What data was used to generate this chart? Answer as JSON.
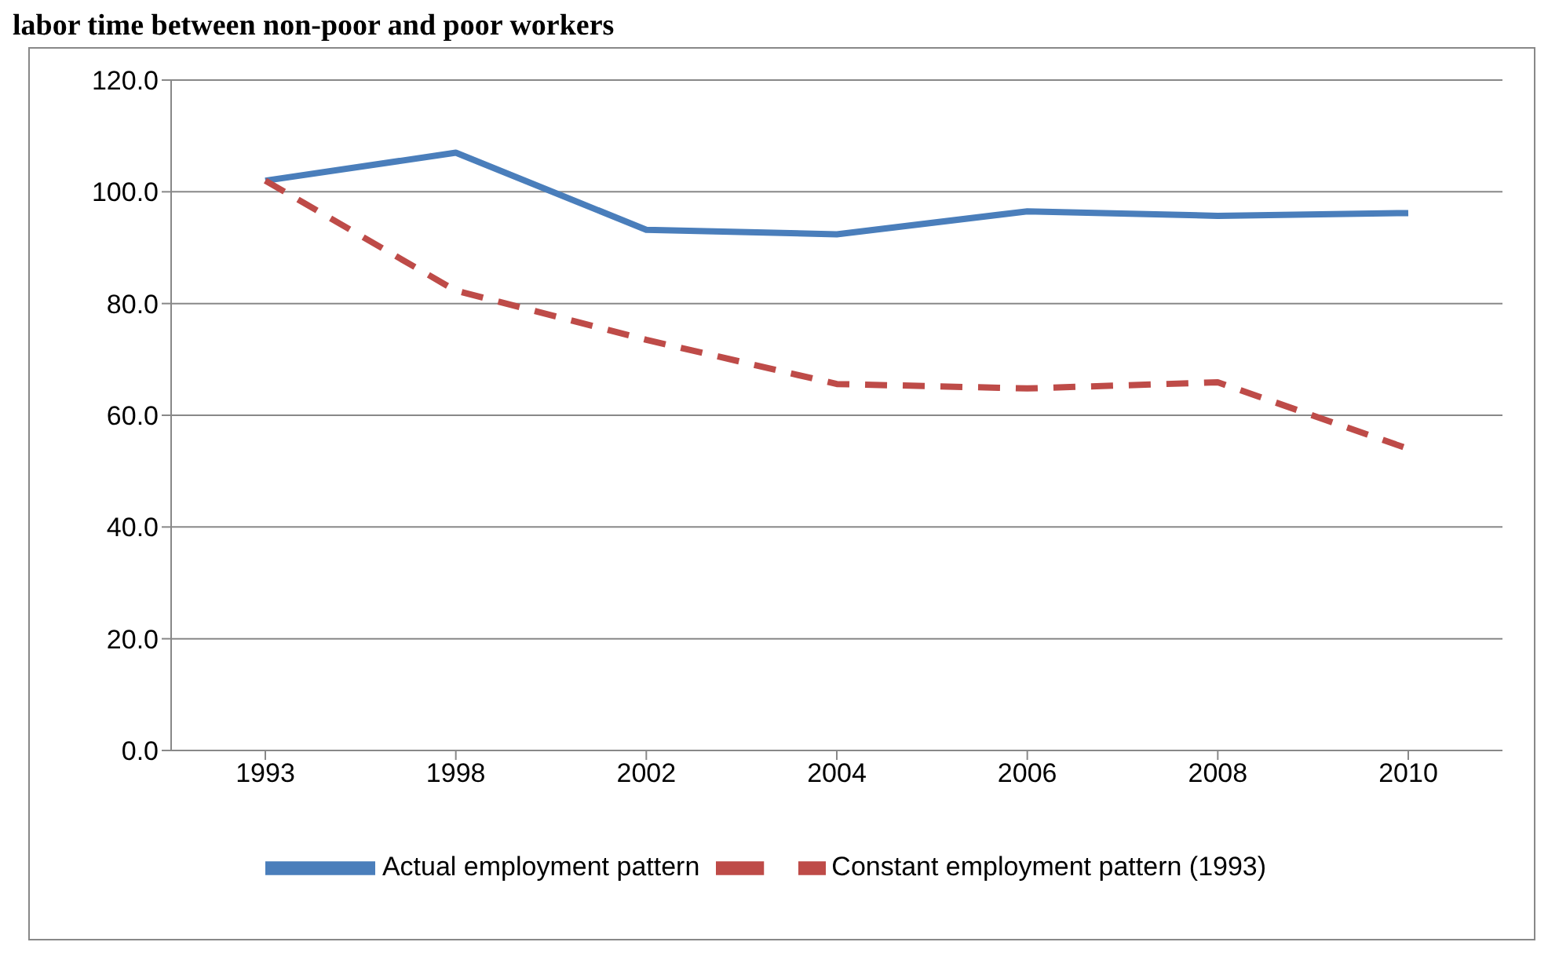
{
  "chart_data": {
    "type": "line",
    "title": "labor time between non-poor and poor workers",
    "categories": [
      "1993",
      "1998",
      "2002",
      "2004",
      "2006",
      "2008",
      "2010"
    ],
    "series": [
      {
        "name": "Actual employment pattern",
        "color": "#4a7ebb",
        "values": [
          102.0,
          107.0,
          93.2,
          92.4,
          96.5,
          95.7,
          96.2
        ],
        "line_style": "solid"
      },
      {
        "name": "Constant employment pattern (1993)",
        "color": "#be4b48",
        "values": [
          102.0,
          82.3,
          73.5,
          65.6,
          64.8,
          65.9,
          54.0
        ],
        "line_style": "dashed"
      }
    ],
    "ylim": [
      0,
      120
    ],
    "yticks": [
      {
        "value": 0,
        "label": "0.0"
      },
      {
        "value": 20,
        "label": "20.0"
      },
      {
        "value": 40,
        "label": "40.0"
      },
      {
        "value": 60,
        "label": "60.0"
      },
      {
        "value": 80,
        "label": "80.0"
      },
      {
        "value": 100,
        "label": "100.0"
      },
      {
        "value": 120,
        "label": "120.0"
      }
    ],
    "grid": "y",
    "legend": "bottom",
    "marker": "none"
  }
}
